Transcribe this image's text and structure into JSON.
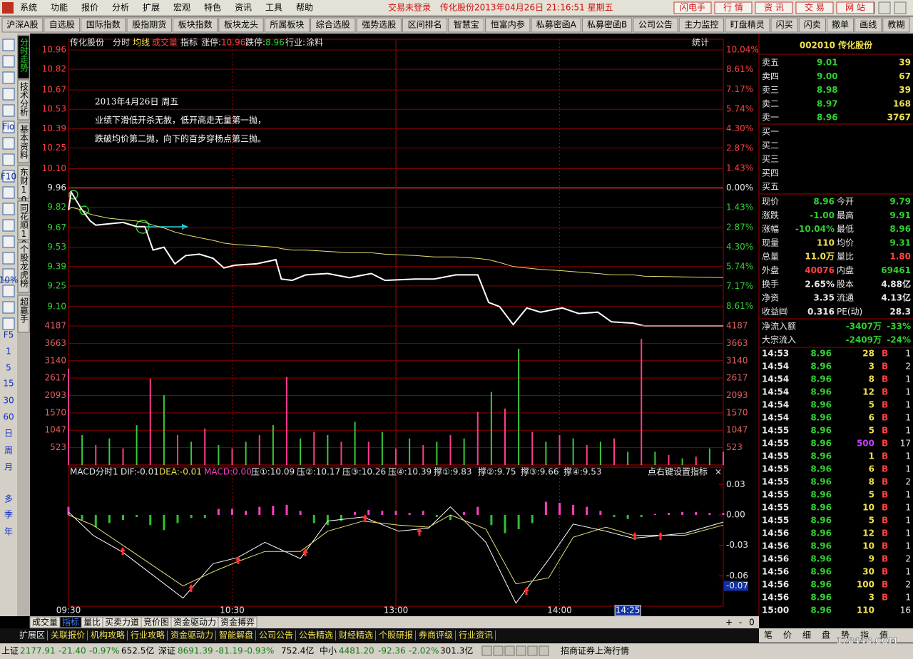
{
  "menu": [
    "系统",
    "功能",
    "报价",
    "分析",
    "扩展",
    "宏观",
    "特色",
    "资讯",
    "工具",
    "帮助"
  ],
  "login_status": "交易未登录",
  "window_title": "传化股份2013年04月26日  21:16:51  星期五",
  "top_buttons": [
    "闪电手",
    "行 情",
    "资 讯",
    "交 易",
    "网 站"
  ],
  "toolbar": [
    "沪深A股",
    "自选股",
    "国际指数",
    "股指期货",
    "板块指数",
    "板块龙头",
    "所属板块",
    "综合选股",
    "强势选股",
    "区间排名",
    "智慧宝",
    "恒富内参",
    "私募密函A",
    "私募密函B",
    "公司公告",
    "主力监控",
    "盯盘精灵",
    "闪买",
    "闪卖",
    "撤单",
    "画线",
    "教糊"
  ],
  "side_tabs": [
    "分时走势",
    "技术分析",
    "基本资料",
    "东财10",
    "同花顺10",
    "个股龙虎榜",
    "超赢手"
  ],
  "side_labels": [
    "Fio",
    "F10",
    "10%",
    "F5"
  ],
  "periods": [
    "1",
    "5",
    "15",
    "30",
    "60",
    "日",
    "周",
    "月",
    "多",
    "季",
    "年"
  ],
  "chart_header": {
    "name": "传化股份",
    "items": [
      "分时",
      "均线",
      "成交量",
      "指标"
    ],
    "limit_up_label": "涨停:",
    "limit_up": "10.96",
    "limit_down_label": "跌停:",
    "limit_down": "8.96",
    "industry_label": "行业:",
    "industry": "涂料",
    "stats": "统计"
  },
  "annotation": [
    "2013年4月26日 周五",
    "业绩下滑低开杀无赦，低开高走无量第一抛，",
    "跌破均价第二抛，向下的百步穿杨点第三抛。"
  ],
  "macd_header": {
    "items": [
      "MACD分时1",
      "DIF:-0.01",
      "DEA:-0.01",
      "MACD:0.00",
      "压①:10.09",
      "压②:10.17",
      "压③:10.26",
      "压④:10.39",
      "撑①:9.83",
      "撑②:9.75",
      "撑③:9.66",
      "撑④:9.53"
    ],
    "hint": "点右键设置指标",
    "close": "×"
  },
  "chart_data": [
    {
      "type": "line",
      "x": [
        0,
        1,
        5,
        8,
        10,
        15,
        20,
        25,
        28,
        31,
        35,
        39,
        43,
        48,
        53,
        57,
        61,
        69,
        76,
        78,
        82,
        87,
        95,
        103,
        111,
        116,
        127,
        134,
        142,
        150,
        154,
        158,
        163,
        168,
        173,
        181,
        187,
        194,
        199,
        207,
        211,
        240
      ],
      "series": [
        {
          "color": "#ffffff",
          "values": [
            9.8,
            9.93,
            9.8,
            9.72,
            9.69,
            9.7,
            9.71,
            9.68,
            9.68,
            9.51,
            9.53,
            9.41,
            9.47,
            9.48,
            9.45,
            9.38,
            9.4,
            9.41,
            9.44,
            9.3,
            9.29,
            9.33,
            9.34,
            9.31,
            9.34,
            9.29,
            9.3,
            9.3,
            9.33,
            9.33,
            9.13,
            9.1,
            8.97,
            9.09,
            9.06,
            9.09,
            9.05,
            9.06,
            8.99,
            8.98,
            8.96,
            8.96
          ]
        },
        {
          "color": "#e8e070",
          "values": [
            9.8,
            9.82,
            9.8,
            9.77,
            9.76,
            9.74,
            9.73,
            9.72,
            9.71,
            9.69,
            9.67,
            9.64,
            9.62,
            9.6,
            9.58,
            9.56,
            9.55,
            9.54,
            9.53,
            9.52,
            9.51,
            9.51,
            9.5,
            9.49,
            9.49,
            9.48,
            9.47,
            9.46,
            9.46,
            9.45,
            9.44,
            9.42,
            9.39,
            9.38,
            9.37,
            9.36,
            9.35,
            9.34,
            9.33,
            9.33,
            9.32,
            9.31
          ]
        }
      ],
      "xlim": [
        0,
        240
      ],
      "xticks": [
        {
          "value": 0,
          "label": "09:30"
        },
        {
          "value": 60,
          "label": "10:30"
        },
        {
          "value": 120,
          "label": "13:00"
        },
        {
          "value": 180,
          "label": "14:00"
        }
      ],
      "ylim": [
        8.96,
        10.96
      ],
      "yticks": [
        10.96,
        10.82,
        10.67,
        10.53,
        10.39,
        10.25,
        {
          "value": 10.1,
          "label": "10.10"
        },
        9.96,
        9.82,
        9.67,
        9.53,
        9.39,
        9.25,
        {
          "value": 9.1,
          "label": "9.10"
        }
      ],
      "y2lim": [
        -10.04,
        10.04
      ],
      "y2ticks": [
        {
          "value": 10.04,
          "label": "10.04%"
        },
        {
          "value": 8.61,
          "label": "8.61%"
        },
        {
          "value": 7.17,
          "label": "7.17%"
        },
        {
          "value": 5.74,
          "label": "5.74%"
        },
        {
          "value": 4.3,
          "label": "4.30%"
        },
        {
          "value": 2.87,
          "label": "2.87%"
        },
        {
          "value": 1.43,
          "label": "1.43%"
        },
        {
          "value": 0,
          "label": "0.00%"
        },
        {
          "value": -1.43,
          "label": "1.43%"
        },
        {
          "value": -2.87,
          "label": "2.87%"
        },
        {
          "value": -4.3,
          "label": "4.30%"
        },
        {
          "value": -5.74,
          "label": "5.74%"
        },
        {
          "value": -7.17,
          "label": "7.17%"
        },
        {
          "value": -8.61,
          "label": "8.61%"
        }
      ],
      "grid": true,
      "cursor": {
        "value": 205,
        "label": "14:25"
      }
    },
    {
      "type": "bar",
      "x": [
        0,
        5,
        10,
        15,
        20,
        25,
        30,
        35,
        40,
        45,
        50,
        55,
        60,
        65,
        70,
        75,
        80,
        85,
        90,
        95,
        100,
        105,
        110,
        115,
        120,
        125,
        130,
        135,
        140,
        145,
        150,
        155,
        160,
        165,
        170,
        175,
        180,
        185,
        190,
        195,
        200,
        205,
        210,
        215,
        220,
        225,
        230,
        235,
        240
      ],
      "values": [
        2900,
        900,
        600,
        800,
        500,
        1200,
        2600,
        2100,
        900,
        700,
        1100,
        600,
        500,
        700,
        900,
        1200,
        2650,
        800,
        1000,
        900,
        700,
        1300,
        700,
        1000,
        500,
        800,
        600,
        700,
        900,
        800,
        1600,
        2200,
        1700,
        3500,
        1000,
        700,
        900,
        800,
        600,
        700,
        800,
        400,
        3800,
        400,
        300,
        200,
        250,
        500,
        400
      ],
      "up_color": "#ff3c8c",
      "down_color": "#3cc83c",
      "ylim": [
        0,
        4187
      ],
      "yticks": [
        523,
        1047,
        1570,
        2093,
        2617,
        3140,
        3663,
        4187
      ],
      "grid": true
    },
    {
      "type": "macd",
      "x": [
        0,
        9,
        20,
        42,
        53,
        62,
        72,
        85,
        95,
        108,
        121,
        132,
        140,
        153,
        164,
        176,
        185,
        197,
        207,
        226,
        240
      ],
      "series": [
        {
          "color": "#ffffff",
          "values": [
            0.003,
            -0.02,
            -0.037,
            -0.082,
            -0.048,
            -0.042,
            -0.027,
            -0.043,
            -0.006,
            -0.002,
            -0.016,
            -0.013,
            0.008,
            -0.027,
            -0.087,
            -0.044,
            -0.009,
            -0.016,
            -0.023,
            -0.018,
            -0.007
          ]
        },
        {
          "color": "#e8e070",
          "values": [
            0.0,
            -0.01,
            -0.03,
            -0.07,
            -0.056,
            -0.046,
            -0.036,
            -0.036,
            -0.016,
            -0.006,
            -0.01,
            -0.012,
            0.0,
            -0.014,
            -0.068,
            -0.062,
            -0.022,
            -0.012,
            -0.02,
            -0.02,
            -0.01
          ]
        }
      ],
      "histogram": {
        "x": [
          0,
          5,
          10,
          15,
          20,
          25,
          30,
          35,
          40,
          45,
          50,
          55,
          60,
          65,
          70,
          75,
          80,
          85,
          90,
          95,
          100,
          105,
          110,
          115,
          120,
          125,
          130,
          135,
          140,
          145,
          150,
          155,
          160,
          165,
          170,
          175,
          180,
          185,
          190,
          195,
          200,
          205,
          210,
          215,
          220,
          225,
          230,
          235,
          240
        ],
        "values": [
          0.008,
          -0.005,
          -0.012,
          -0.008,
          -0.005,
          -0.002,
          -0.01,
          -0.015,
          -0.008,
          -0.003,
          -0.003,
          0.006,
          0.006,
          0.004,
          0.008,
          0.009,
          0.01,
          0.004,
          -0.008,
          -0.01,
          -0.006,
          0.003,
          0.005,
          0.004,
          0.004,
          0.002,
          0.004,
          -0.002,
          -0.005,
          0.003,
          0.008,
          -0.01,
          -0.018,
          -0.014,
          -0.008,
          0.013,
          0.012,
          0.01,
          0.008,
          0.004,
          -0.002,
          -0.004,
          -0.002,
          0.001,
          0.002,
          0.003,
          0.003,
          0.002,
          0.002
        ],
        "up_color": "#ff40c0",
        "down_color": "#30c030"
      },
      "xlim": [
        0,
        240
      ],
      "ylim": [
        -0.09,
        0.038
      ],
      "yticks": [
        0.03,
        {
          "value": 0,
          "label": "0.00"
        },
        -0.03,
        -0.06,
        -0.07
      ]
    }
  ],
  "bottom_tabs": [
    "成交量",
    "指标",
    "量比",
    "买卖力道",
    "竞价图",
    "资金驱动力",
    "资金搏弈"
  ],
  "zoom_buttons": [
    "+",
    "-",
    "0"
  ],
  "info_tabs": [
    "扩展区",
    "关联报价",
    "机构攻略",
    "行业攻略",
    "资金驱动力",
    "智能解盘",
    "公司公告",
    "公告精选",
    "财经精选",
    "个股研报",
    "券商评级",
    "行业资讯"
  ],
  "quote": {
    "title": "002010 传化股份",
    "sell": [
      [
        "卖五",
        "9.01",
        "39"
      ],
      [
        "卖四",
        "9.00",
        "67"
      ],
      [
        "卖三",
        "8.98",
        "39"
      ],
      [
        "卖二",
        "8.97",
        "168"
      ],
      [
        "卖一",
        "8.96",
        "3767"
      ]
    ],
    "buy": [
      "买一",
      "买二",
      "买三",
      "买四",
      "买五"
    ],
    "stats": [
      [
        "现价",
        "8.96",
        "今开",
        "9.79"
      ],
      [
        "涨跌",
        "-1.00",
        "最高",
        "9.91"
      ],
      [
        "涨幅",
        "-10.04%",
        "最低",
        "8.96"
      ],
      [
        "现量",
        "110",
        "均价",
        "9.31"
      ],
      [
        "总量",
        "11.0万",
        "量比",
        "1.80"
      ],
      [
        "外盘",
        "40076",
        "内盘",
        "69461"
      ],
      [
        "换手",
        "2.65%",
        "股本",
        "4.88亿"
      ],
      [
        "净资",
        "3.35",
        "流通",
        "4.13亿"
      ],
      [
        "收益㈣",
        "0.316",
        "PE(动)",
        "28.3"
      ]
    ],
    "flows": [
      [
        "净流入额",
        "-3407万",
        "-33%"
      ],
      [
        "大宗流入",
        "-2409万",
        "-24%"
      ]
    ],
    "ticks": [
      [
        "14:53",
        "8.96",
        "28",
        "B",
        "1"
      ],
      [
        "14:54",
        "8.96",
        "3",
        "B",
        "2"
      ],
      [
        "14:54",
        "8.96",
        "8",
        "B",
        "1"
      ],
      [
        "14:54",
        "8.96",
        "12",
        "B",
        "1"
      ],
      [
        "14:54",
        "8.96",
        "5",
        "B",
        "1"
      ],
      [
        "14:54",
        "8.96",
        "6",
        "B",
        "1"
      ],
      [
        "14:55",
        "8.96",
        "5",
        "B",
        "1"
      ],
      [
        "14:55",
        "8.96",
        "500",
        "B",
        "17"
      ],
      [
        "14:55",
        "8.96",
        "1",
        "B",
        "1"
      ],
      [
        "14:55",
        "8.96",
        "6",
        "B",
        "1"
      ],
      [
        "14:55",
        "8.96",
        "8",
        "B",
        "2"
      ],
      [
        "14:55",
        "8.96",
        "5",
        "B",
        "1"
      ],
      [
        "14:55",
        "8.96",
        "10",
        "B",
        "1"
      ],
      [
        "14:55",
        "8.96",
        "5",
        "B",
        "1"
      ],
      [
        "14:56",
        "8.96",
        "12",
        "B",
        "1"
      ],
      [
        "14:56",
        "8.96",
        "10",
        "B",
        "1"
      ],
      [
        "14:56",
        "8.96",
        "9",
        "B",
        "2"
      ],
      [
        "14:56",
        "8.96",
        "30",
        "B",
        "1"
      ],
      [
        "14:56",
        "8.96",
        "100",
        "B",
        "2"
      ],
      [
        "14:56",
        "8.96",
        "3",
        "B",
        "1"
      ],
      [
        "15:00",
        "8.96",
        "110",
        "16"
      ]
    ],
    "tabs": [
      "笔",
      "价",
      "细",
      "盘",
      "势",
      "指",
      "值"
    ]
  },
  "watermark": "178448.COM",
  "status_bar": {
    "markets": [
      [
        "上证",
        "2177.91",
        "-21.40",
        "-0.97%",
        "652.5亿"
      ],
      [
        "深证",
        "8691.39",
        "-81.19",
        "-0.93%",
        "752.4亿"
      ],
      [
        "中小",
        "4481.20",
        "-92.36",
        "-2.02%",
        "301.3亿"
      ]
    ],
    "broker": "招商证券上海行情"
  }
}
